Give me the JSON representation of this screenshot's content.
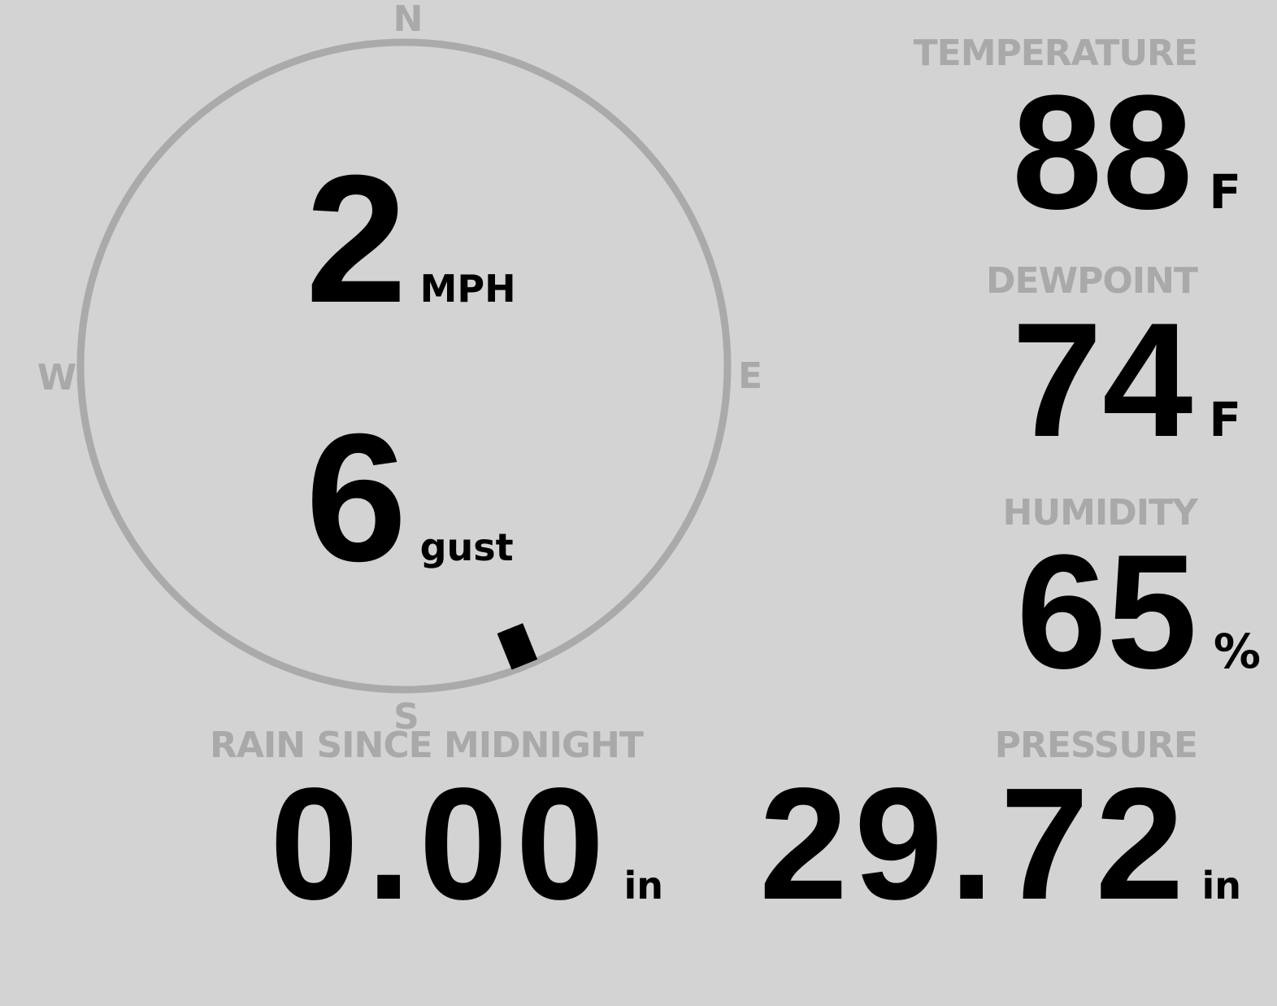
{
  "wind": {
    "speed": "2",
    "speed_unit": "MPH",
    "gust": "6",
    "gust_unit": "gust",
    "direction_degrees": 158,
    "compass": {
      "n": "N",
      "e": "E",
      "s": "S",
      "w": "W"
    }
  },
  "temperature": {
    "label": "TEMPERATURE",
    "value": "88",
    "unit": "F"
  },
  "dewpoint": {
    "label": "DEWPOINT",
    "value": "74",
    "unit": "F"
  },
  "humidity": {
    "label": "HUMIDITY",
    "value": "65",
    "unit": "%"
  },
  "rain": {
    "label": "RAIN SINCE MIDNIGHT",
    "value": "0.00",
    "unit": "in"
  },
  "pressure": {
    "label": "PRESSURE",
    "value": "29.72",
    "unit": "in"
  },
  "colors": {
    "background": "#d3d3d3",
    "muted": "#a9a9a9",
    "text": "#000000"
  }
}
